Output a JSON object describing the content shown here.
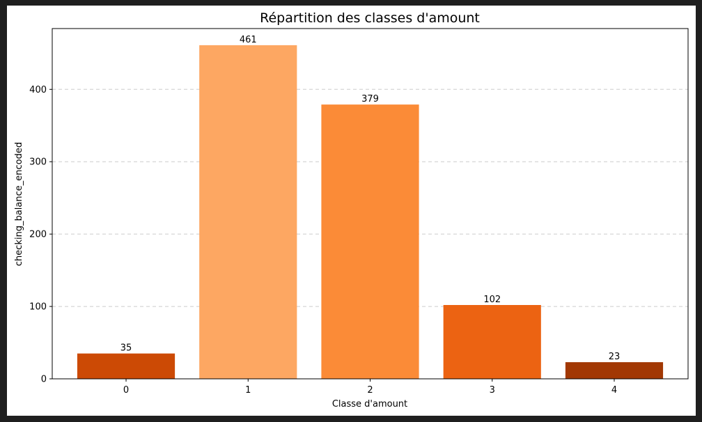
{
  "chart_data": {
    "type": "bar",
    "title": "Répartition des classes d'amount",
    "xlabel": "Classe d'amount",
    "ylabel": "checking_balance_encoded",
    "categories": [
      "0",
      "1",
      "2",
      "3",
      "4"
    ],
    "values": [
      35,
      461,
      379,
      102,
      23
    ],
    "data_labels": [
      "35",
      "461",
      "379",
      "102",
      "23"
    ],
    "colors": [
      "#cc4a05",
      "#fda762",
      "#fb8b37",
      "#ec6312",
      "#a23804"
    ],
    "ylim": [
      0,
      484
    ],
    "yticks": [
      0,
      100,
      200,
      300,
      400
    ],
    "ytick_labels": [
      "0",
      "100",
      "200",
      "300",
      "400"
    ],
    "grid": "y-dashed",
    "legend": "none"
  }
}
